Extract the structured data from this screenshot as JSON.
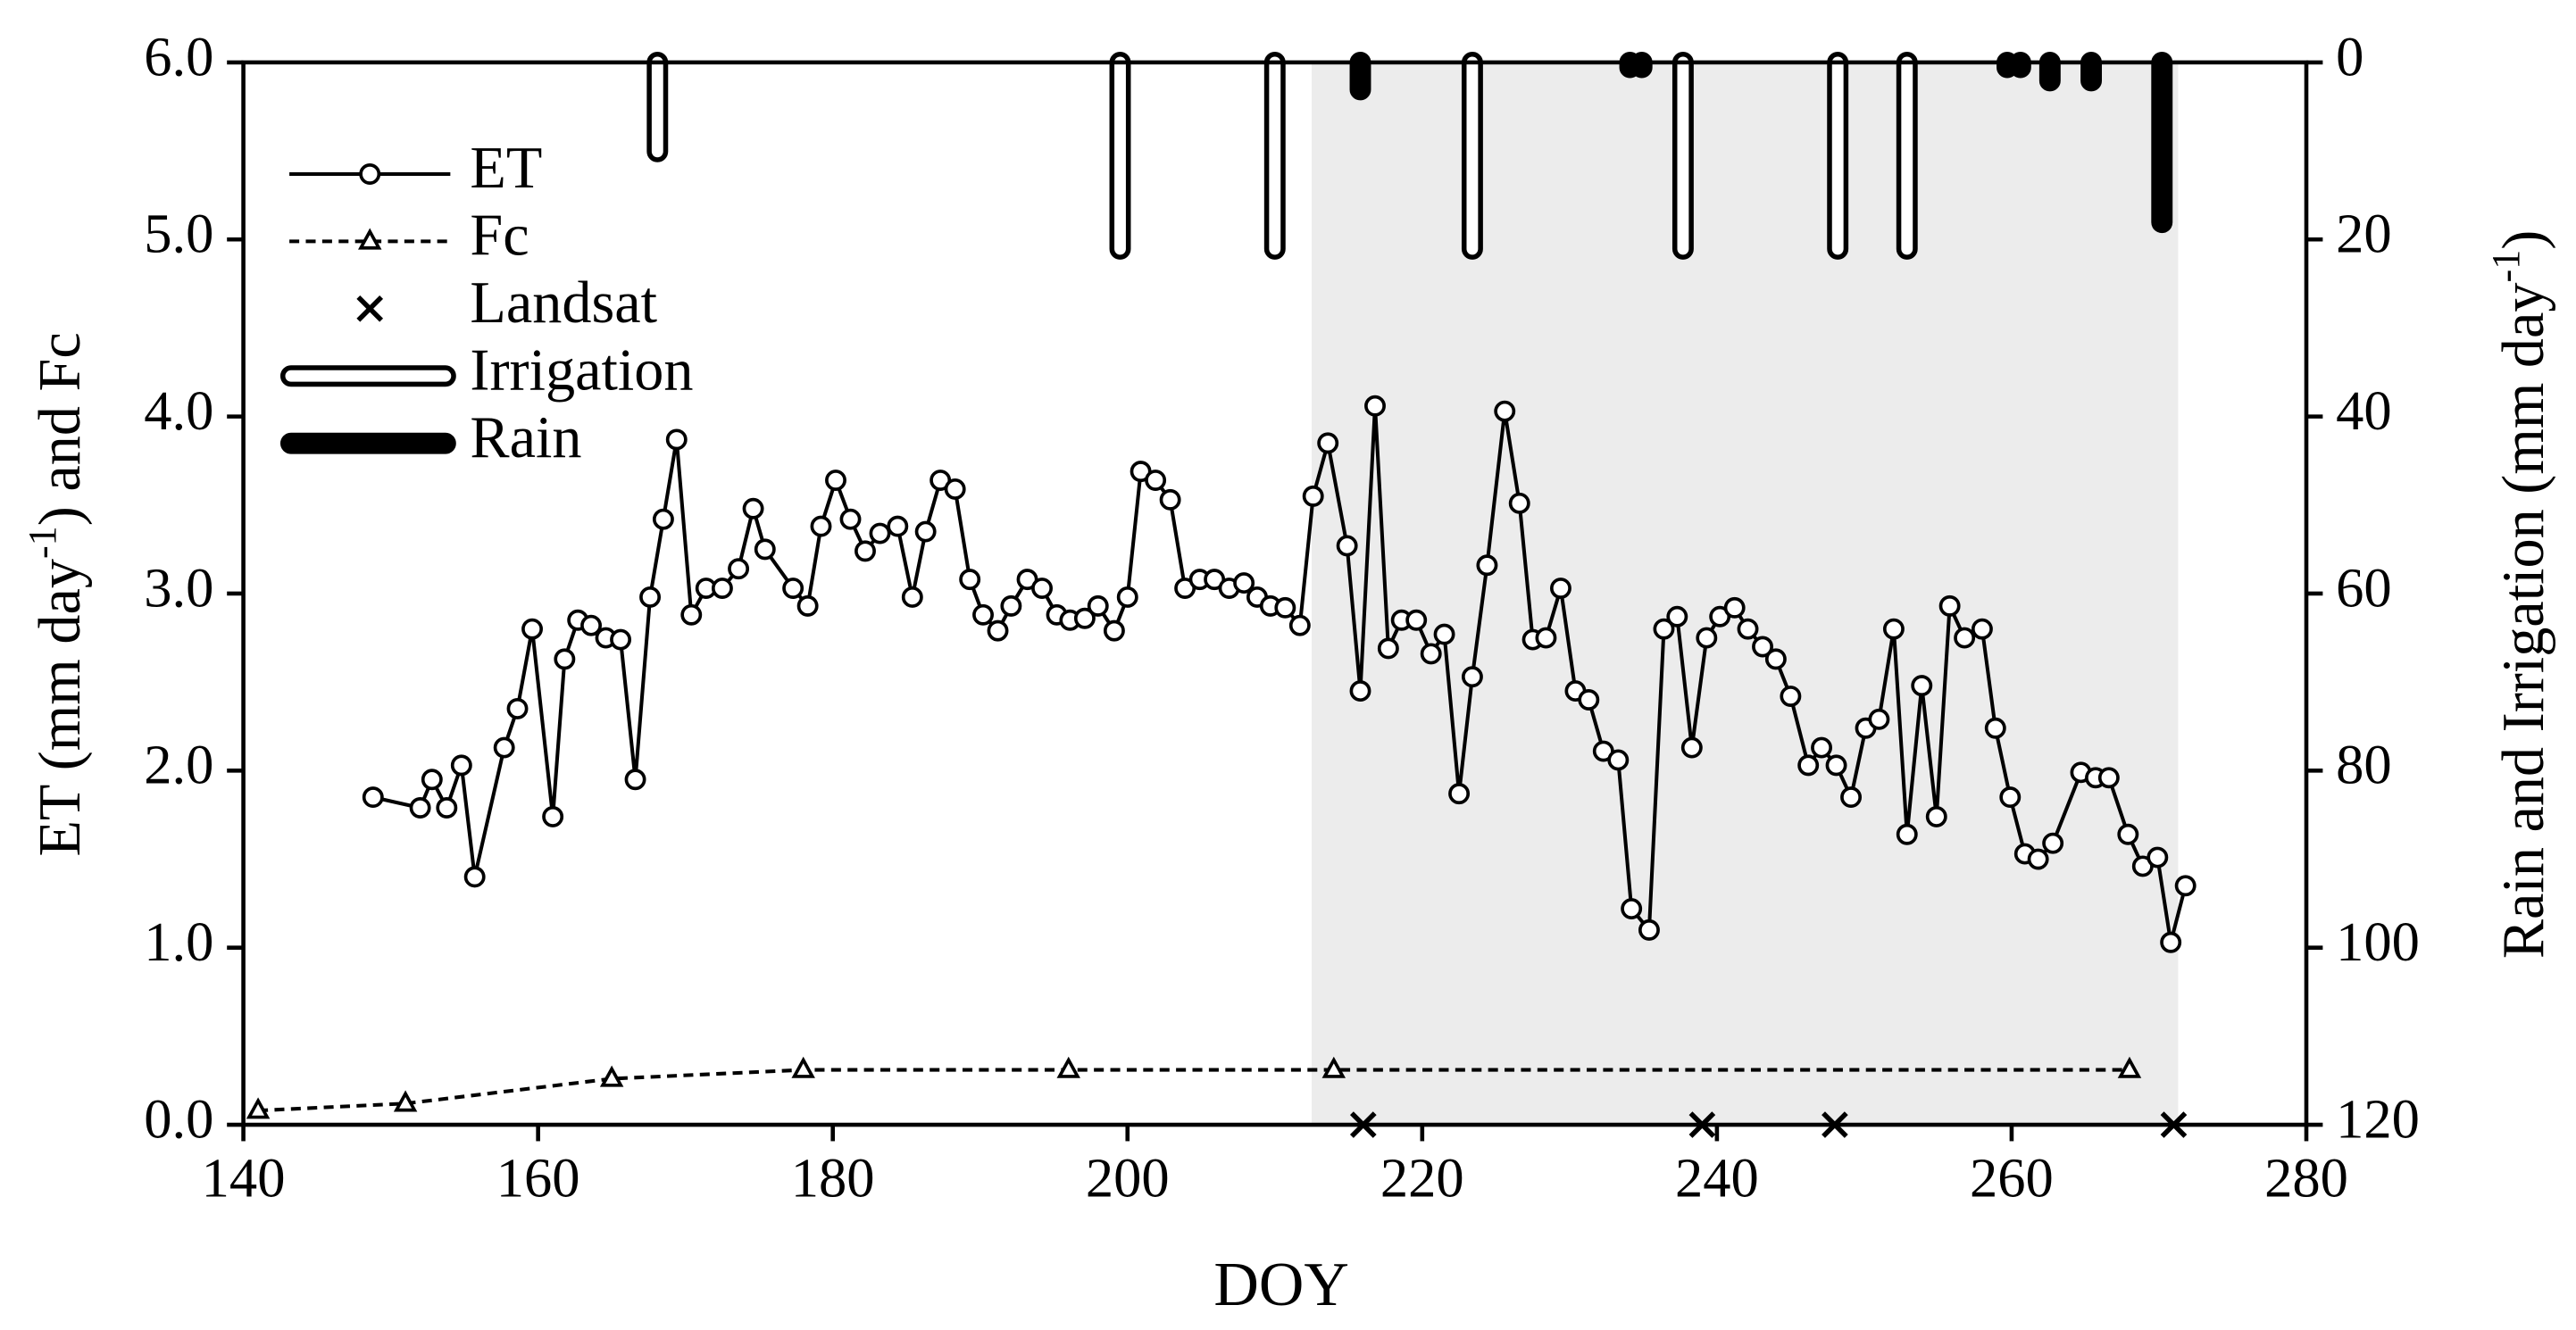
{
  "chart_data": {
    "type": "line",
    "xlabel": "DOY",
    "ylabel": [
      "ET (mm day",
      "-1",
      ") and Fc"
    ],
    "y2label": [
      "Rain and Irrigation (mm day",
      "-1",
      ")"
    ],
    "xlim": [
      140,
      280
    ],
    "xticks": [
      140,
      160,
      180,
      200,
      220,
      240,
      260,
      280
    ],
    "ylim": [
      0,
      6
    ],
    "yticks": [
      {
        "value": 0,
        "label": "0.0"
      },
      {
        "value": 1,
        "label": "1.0"
      },
      {
        "value": 2,
        "label": "2.0"
      },
      {
        "value": 3,
        "label": "3.0"
      },
      {
        "value": 4,
        "label": "4.0"
      },
      {
        "value": 5,
        "label": "5.0"
      },
      {
        "value": 6,
        "label": "6.0"
      }
    ],
    "y2lim": [
      120,
      0
    ],
    "y2ticks": [
      0,
      20,
      40,
      60,
      80,
      100,
      120
    ],
    "shaded_span": [
      212.5,
      271.3
    ],
    "shade_color": "#ececec",
    "legend": "upper left",
    "series": [
      {
        "name": "ET",
        "color": "#000000",
        "line": "solid",
        "marker": "circle",
        "x": [
          148.8,
          152.0,
          152.8,
          153.8,
          154.8,
          155.7,
          157.7,
          158.6,
          159.6,
          161.0,
          161.8,
          162.7,
          163.6,
          164.6,
          165.6,
          166.6,
          167.6,
          168.5,
          169.4,
          170.4,
          171.4,
          172.5,
          173.6,
          174.6,
          175.4,
          177.3,
          178.3,
          179.2,
          180.2,
          181.2,
          182.2,
          183.2,
          184.4,
          185.4,
          186.3,
          187.3,
          188.3,
          189.3,
          190.2,
          191.2,
          192.1,
          193.2,
          194.2,
          195.2,
          196.1,
          197.1,
          198.0,
          199.1,
          200.0,
          200.9,
          201.9,
          202.9,
          203.9,
          204.9,
          205.9,
          206.9,
          207.9,
          208.8,
          209.7,
          210.7,
          211.7,
          212.6,
          213.6,
          214.9,
          215.8,
          216.8,
          217.7,
          218.6,
          219.6,
          220.6,
          221.5,
          222.5,
          223.4,
          224.4,
          225.6,
          226.6,
          227.5,
          228.4,
          229.4,
          230.4,
          231.3,
          232.3,
          233.3,
          234.2,
          235.4,
          236.4,
          237.3,
          238.3,
          239.3,
          240.2,
          241.2,
          242.1,
          243.1,
          244.0,
          245.0,
          246.2,
          247.1,
          248.1,
          249.1,
          250.1,
          251.0,
          252.0,
          252.9,
          253.9,
          254.9,
          255.8,
          256.8,
          258.0,
          258.9,
          259.9,
          260.9,
          261.8,
          262.8,
          264.7,
          265.7,
          266.6,
          267.9,
          268.9,
          269.9,
          270.8,
          271.8
        ],
        "values": [
          1.85,
          1.79,
          1.95,
          1.79,
          2.03,
          1.4,
          2.13,
          2.35,
          2.8,
          1.74,
          2.63,
          2.85,
          2.82,
          2.75,
          2.74,
          1.95,
          2.98,
          3.42,
          3.87,
          2.88,
          3.03,
          3.03,
          3.14,
          3.48,
          3.25,
          3.03,
          2.93,
          3.38,
          3.64,
          3.42,
          3.24,
          3.34,
          3.38,
          2.98,
          3.35,
          3.64,
          3.59,
          3.08,
          2.88,
          2.79,
          2.93,
          3.08,
          3.03,
          2.88,
          2.85,
          2.86,
          2.93,
          2.79,
          2.98,
          3.69,
          3.64,
          3.53,
          3.03,
          3.08,
          3.08,
          3.03,
          3.06,
          2.98,
          2.93,
          2.92,
          2.82,
          3.55,
          3.85,
          3.27,
          2.45,
          4.06,
          2.69,
          2.85,
          2.85,
          2.66,
          2.77,
          1.87,
          2.53,
          3.16,
          4.03,
          3.51,
          2.74,
          2.75,
          3.03,
          2.45,
          2.4,
          2.11,
          2.06,
          1.22,
          1.1,
          2.8,
          2.87,
          2.13,
          2.75,
          2.87,
          2.92,
          2.8,
          2.7,
          2.63,
          2.42,
          2.03,
          2.13,
          2.03,
          1.85,
          2.24,
          2.29,
          2.8,
          1.64,
          2.48,
          1.74,
          2.93,
          2.75,
          2.8,
          2.24,
          1.85,
          1.53,
          1.5,
          1.59,
          1.99,
          1.96,
          1.96,
          1.64,
          1.46,
          1.51,
          1.03,
          1.35
        ]
      },
      {
        "name": "Fc",
        "color": "#000000",
        "line": "dashed",
        "marker": "triangle",
        "x": [
          141,
          151,
          165,
          178,
          196,
          214,
          268
        ],
        "values": [
          0.08,
          0.12,
          0.26,
          0.31,
          0.31,
          0.31,
          0.31
        ]
      },
      {
        "name": "Landsat",
        "color": "#000000",
        "line": "none",
        "marker": "x",
        "x": [
          216,
          239,
          248,
          271
        ],
        "values": [
          0,
          0,
          0,
          0
        ]
      },
      {
        "name": "Irrigation",
        "color": "#000000",
        "bar_style": "hollow",
        "axis": "y2",
        "x": [
          168.1,
          199.5,
          210.0,
          223.4,
          237.7,
          248.2,
          252.9
        ],
        "values": [
          11,
          22,
          22,
          22,
          22,
          22,
          22
        ]
      },
      {
        "name": "Rain",
        "color": "#000000",
        "bar_style": "filled",
        "axis": "y2",
        "x": [
          215.8,
          234.1,
          234.9,
          259.7,
          260.6,
          262.6,
          265.4,
          270.2
        ],
        "values": [
          4,
          1.5,
          1.5,
          1.5,
          1.5,
          3,
          3,
          19
        ]
      }
    ]
  }
}
